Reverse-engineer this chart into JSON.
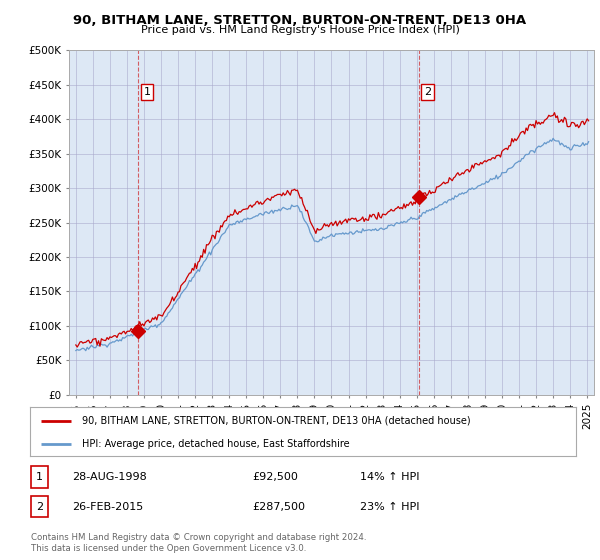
{
  "title": "90, BITHAM LANE, STRETTON, BURTON-ON-TRENT, DE13 0HA",
  "subtitle": "Price paid vs. HM Land Registry's House Price Index (HPI)",
  "legend_line1": "90, BITHAM LANE, STRETTON, BURTON-ON-TRENT, DE13 0HA (detached house)",
  "legend_line2": "HPI: Average price, detached house, East Staffordshire",
  "sale1_date": "28-AUG-1998",
  "sale1_price": "£92,500",
  "sale1_hpi": "14% ↑ HPI",
  "sale2_date": "26-FEB-2015",
  "sale2_price": "£287,500",
  "sale2_hpi": "23% ↑ HPI",
  "footer": "Contains HM Land Registry data © Crown copyright and database right 2024.\nThis data is licensed under the Open Government Licence v3.0.",
  "red_color": "#cc0000",
  "blue_color": "#6699cc",
  "chart_bg": "#dde8f5",
  "background_color": "#ffffff",
  "grid_color": "#aaaacc",
  "ylim": [
    0,
    500000
  ],
  "yticks": [
    0,
    50000,
    100000,
    150000,
    200000,
    250000,
    300000,
    350000,
    400000,
    450000,
    500000
  ],
  "sale1_x": 1998.67,
  "sale1_y": 92500,
  "sale2_x": 2015.12,
  "sale2_y": 287500,
  "xlim_left": 1994.6,
  "xlim_right": 2025.4
}
